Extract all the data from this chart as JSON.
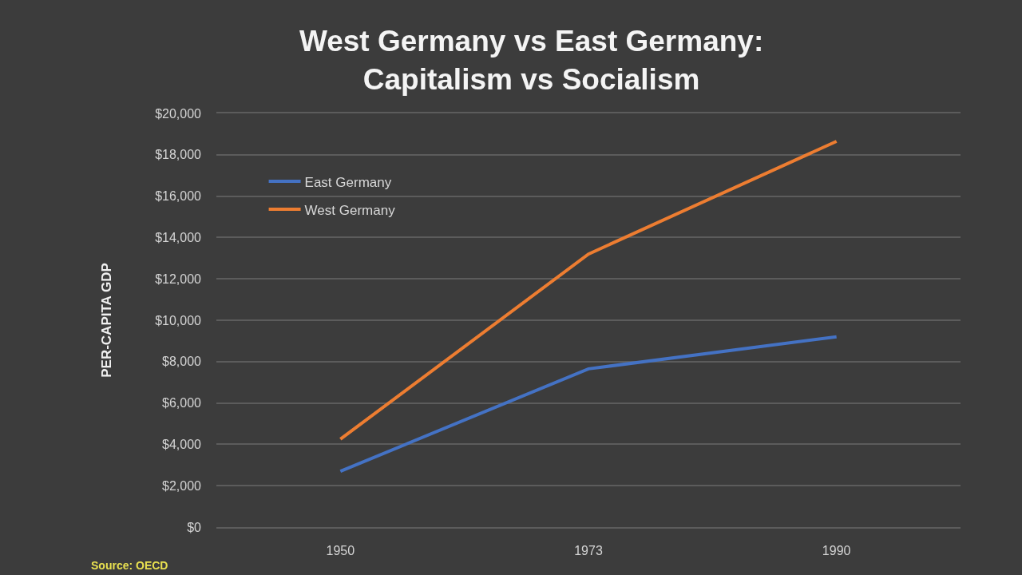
{
  "chart_data": {
    "type": "line",
    "title": "West Germany vs East Germany:\nCapitalism vs Socialism",
    "ylabel": "PER-CAPITA GDP",
    "categories": [
      "1950",
      "1973",
      "1990"
    ],
    "series": [
      {
        "name": "East Germany",
        "color": "#4472c4",
        "values": [
          2700,
          7650,
          9200
        ]
      },
      {
        "name": "West Germany",
        "color": "#ed7d31",
        "values": [
          4250,
          13200,
          18650
        ]
      }
    ],
    "ylim": [
      0,
      20000
    ],
    "yticks": [
      {
        "value": 0,
        "label": "$0"
      },
      {
        "value": 2000,
        "label": "$2,000"
      },
      {
        "value": 4000,
        "label": "$4,000"
      },
      {
        "value": 6000,
        "label": "$6,000"
      },
      {
        "value": 8000,
        "label": "$8,000"
      },
      {
        "value": 10000,
        "label": "$10,000"
      },
      {
        "value": 12000,
        "label": "$12,000"
      },
      {
        "value": 14000,
        "label": "$14,000"
      },
      {
        "value": 16000,
        "label": "$16,000"
      },
      {
        "value": 18000,
        "label": "$18,000"
      },
      {
        "value": 20000,
        "label": "$20,000"
      }
    ],
    "grid": "y",
    "legend": "top left",
    "marker": "none",
    "line_style": "solid",
    "annotations": [
      "Source: OECD"
    ]
  }
}
